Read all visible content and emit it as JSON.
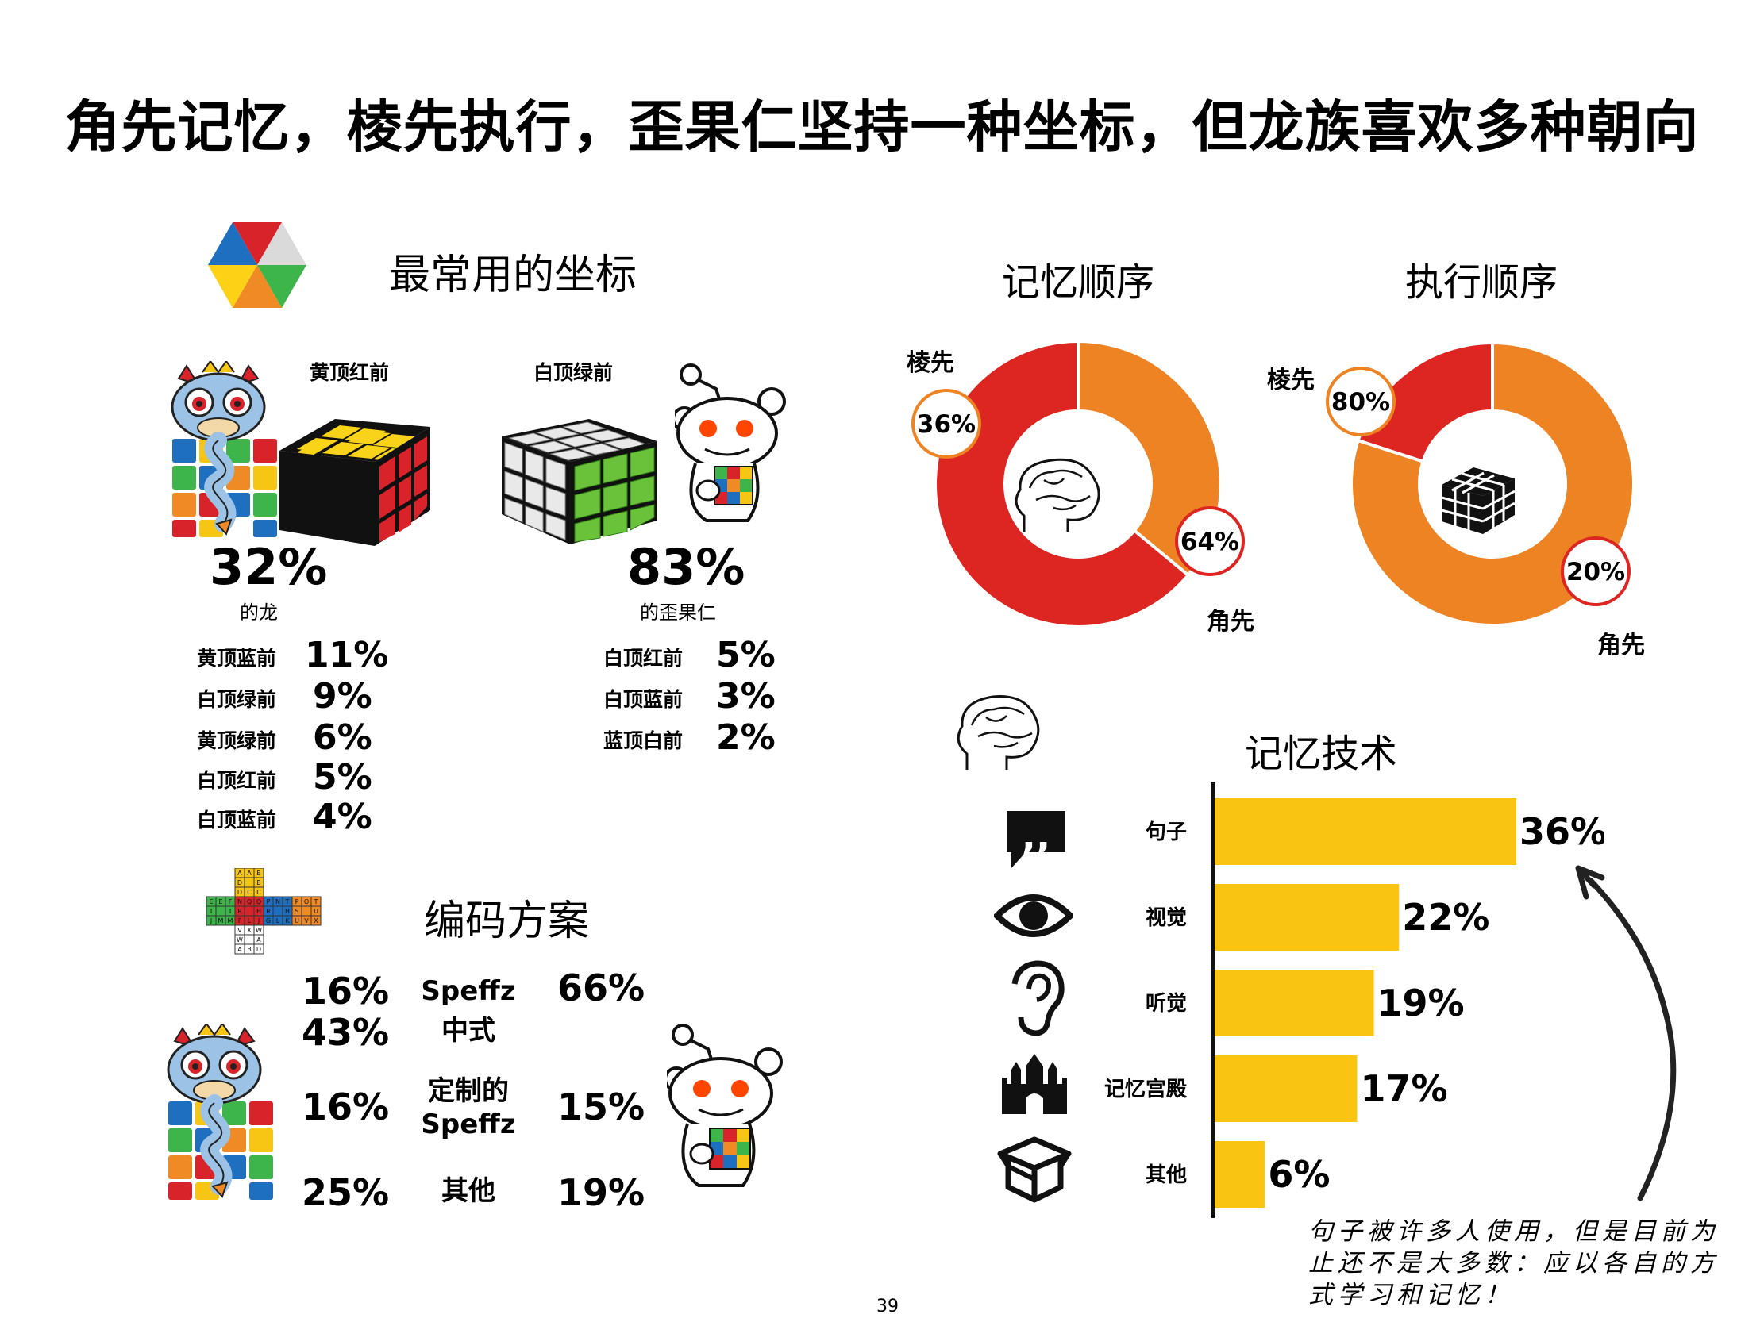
{
  "title": "角先记忆，棱先执行，歪果仁坚持一种坐标，但龙族喜欢多种朝向",
  "orientation": {
    "heading": "最常用的坐标",
    "dragon": {
      "top_label": "黄顶红前",
      "pct": "32%",
      "caption": "的龙"
    },
    "reddit": {
      "top_label": "白顶绿前",
      "pct": "83%",
      "caption": "的歪果仁"
    },
    "dragon_list": [
      {
        "label": "黄顶蓝前",
        "value": "11%"
      },
      {
        "label": "白顶绿前",
        "value": "9%"
      },
      {
        "label": "黄顶绿前",
        "value": "6%"
      },
      {
        "label": "白顶红前",
        "value": "5%"
      },
      {
        "label": "白顶蓝前",
        "value": "4%"
      }
    ],
    "reddit_list": [
      {
        "label": "白顶红前",
        "value": "5%"
      },
      {
        "label": "白顶蓝前",
        "value": "3%"
      },
      {
        "label": "蓝顶白前",
        "value": "2%"
      }
    ]
  },
  "encoding": {
    "heading": "编码方案",
    "rows": [
      {
        "dragon": "16%",
        "label": "Speffz",
        "reddit": "66%"
      },
      {
        "dragon": "43%",
        "label": "中式",
        "reddit": ""
      },
      {
        "dragon": "16%",
        "label": "定制的 Speffz",
        "label_line1": "定制的",
        "label_line2": "Speffz",
        "reddit": "15%"
      },
      {
        "dragon": "25%",
        "label": "其他",
        "reddit": "19%"
      }
    ],
    "speffz_letters": [
      "A",
      "A",
      "B",
      "D",
      "B",
      "D",
      "C",
      "C",
      "E",
      "E",
      "F",
      "I",
      "I",
      "J",
      "M",
      "M",
      "N",
      "Q",
      "Q",
      "R",
      "H",
      "F",
      "L",
      "J",
      "P",
      "N",
      "T",
      "R",
      "H",
      "G",
      "L",
      "K",
      "P",
      "O",
      "T",
      "S",
      "U",
      "U",
      "V",
      "X",
      "V",
      "X",
      "W",
      "W"
    ]
  },
  "colors": {
    "orange": "#ED8323",
    "red": "#DD2522",
    "yellow": "#F9C512",
    "black": "#000000"
  },
  "icons": {
    "hex_logo": "orientation-hex-icon",
    "brain": "brain-icon",
    "cube": "cube-icon",
    "quote": "quote-icon",
    "eye": "eye-icon",
    "ear": "ear-icon",
    "castle": "palace-icon",
    "box": "box-icon",
    "dragon": "dragon-mascot",
    "reddit": "reddit-alien-mascot"
  },
  "chart_data": [
    {
      "type": "pie",
      "title": "记忆顺序",
      "slices": [
        {
          "label": "棱先",
          "value": 36,
          "display": "36%",
          "color": "#ED8323"
        },
        {
          "label": "角先",
          "value": 64,
          "display": "64%",
          "color": "#DD2522"
        }
      ]
    },
    {
      "type": "pie",
      "title": "执行顺序",
      "slices": [
        {
          "label": "棱先",
          "value": 80,
          "display": "80%",
          "color": "#ED8323"
        },
        {
          "label": "角先",
          "value": 20,
          "display": "20%",
          "color": "#DD2522"
        }
      ]
    },
    {
      "type": "bar",
      "title": "记忆技术",
      "orientation": "horizontal",
      "categories": [
        "句子",
        "视觉",
        "听觉",
        "记忆宫殿",
        "其他"
      ],
      "values": [
        36,
        22,
        19,
        17,
        6
      ],
      "labels": [
        "36%",
        "22%",
        "19%",
        "17%",
        "6%"
      ],
      "color": "#F9C512"
    }
  ],
  "annotation": {
    "lines": [
      "句子被许多人使用，但是目前为",
      "止还不是大多数：应以各自的方",
      "式学习和记忆！"
    ]
  },
  "page_number": "39"
}
